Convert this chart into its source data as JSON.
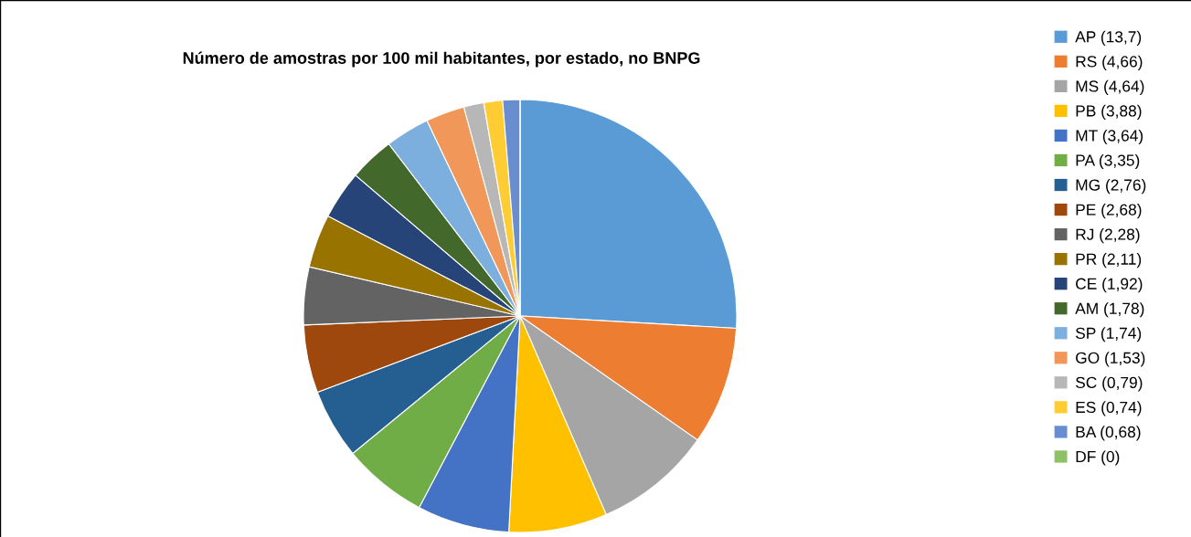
{
  "chart_data": {
    "type": "pie",
    "title": "Número de amostras por 100 mil habitantes, por estado, no BNPG",
    "categories": [
      "AP (13,7)",
      "RS (4,66)",
      "MS (4,64)",
      "PB (3,88)",
      "MT (3,64)",
      "PA (3,35)",
      "MG (2,76)",
      "PE (2,68)",
      "RJ (2,28)",
      "PR (2,11)",
      "CE (1,92)",
      "AM (1,78)",
      "SP (1,74)",
      "GO (1,53)",
      "SC (0,79)",
      "ES (0,74)",
      "BA (0,68)",
      "DF (0)"
    ],
    "values": [
      13.7,
      4.66,
      4.64,
      3.88,
      3.64,
      3.35,
      2.76,
      2.68,
      2.28,
      2.11,
      1.92,
      1.78,
      1.74,
      1.53,
      0.79,
      0.74,
      0.68,
      0
    ],
    "colors": [
      "#5b9bd5",
      "#ed7d31",
      "#a5a5a5",
      "#ffc000",
      "#4472c4",
      "#70ad47",
      "#255e91",
      "#9e480e",
      "#636363",
      "#997300",
      "#264478",
      "#43682b",
      "#7cafdd",
      "#f1975a",
      "#b7b7b7",
      "#ffcd33",
      "#698ed0",
      "#8cc168"
    ],
    "legend": "right"
  }
}
